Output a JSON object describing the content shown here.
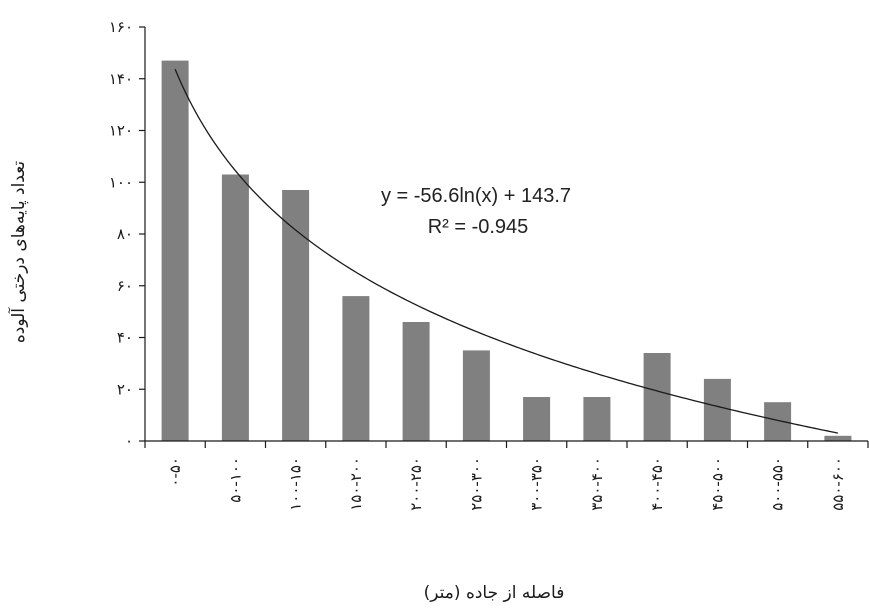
{
  "chart_data": {
    "type": "bar",
    "categories": [
      "۰-۵۰",
      "۵۰-۱۰۰",
      "۱۰۰-۱۵۰",
      "۱۵۰-۲۰۰",
      "۲۰۰-۲۵۰",
      "۲۵۰-۳۰۰",
      "۳۰۰-۳۵۰",
      "۳۵۰-۴۰۰",
      "۴۰۰-۴۵۰",
      "۴۵۰-۵۰۰",
      "۵۰۰-۵۵۰",
      "۵۵۰-۶۰۰"
    ],
    "values": [
      147,
      103,
      97,
      56,
      46,
      35,
      17,
      17,
      34,
      24,
      15,
      2
    ],
    "xlabel": "فاصله از جاده (متر)",
    "ylabel": "تعداد پایه‌های درختی آلوده",
    "ylim": [
      0,
      160
    ],
    "yticks": [
      0,
      20,
      40,
      60,
      80,
      100,
      120,
      140,
      160
    ],
    "ytick_labels": [
      "۰",
      "۲۰",
      "۴۰",
      "۶۰",
      "۸۰",
      "۱۰۰",
      "۱۲۰",
      "۱۴۰",
      "۱۶۰"
    ],
    "trendline": {
      "type": "logarithmic",
      "a": -56.6,
      "b": 143.7,
      "equation_label": "y = -56.6ln(x) + 143.7",
      "r2_label": "R² = -0.945"
    },
    "grid": false,
    "legend": "none",
    "bar_color": "#808080",
    "line_color": "#1a1a1a"
  }
}
